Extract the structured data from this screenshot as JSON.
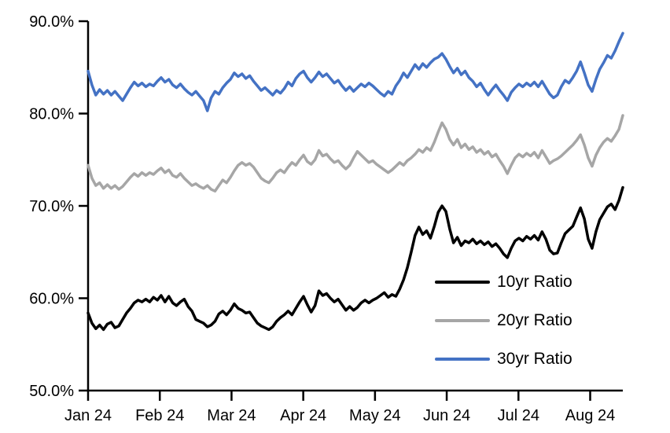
{
  "chart_data": {
    "type": "line",
    "title": "",
    "xlabel": "",
    "ylabel": "",
    "grid": false,
    "legend_position": "inside-lower-right",
    "ylim": [
      50,
      90
    ],
    "y_ticks": [
      {
        "value": 50,
        "label": "50.0%"
      },
      {
        "value": 60,
        "label": "60.0%"
      },
      {
        "value": 70,
        "label": "70.0%"
      },
      {
        "value": 80,
        "label": "80.0%"
      },
      {
        "value": 90,
        "label": "90.0%"
      }
    ],
    "x_range_months": [
      0,
      7.455
    ],
    "x_ticks": [
      {
        "pos": 0,
        "label": "Jan 24"
      },
      {
        "pos": 1,
        "label": "Feb 24"
      },
      {
        "pos": 2,
        "label": "Mar 24"
      },
      {
        "pos": 3,
        "label": "Apr 24"
      },
      {
        "pos": 4,
        "label": "May 24"
      },
      {
        "pos": 5,
        "label": "Jun 24"
      },
      {
        "pos": 6,
        "label": "Jul 24"
      },
      {
        "pos": 7,
        "label": "Aug 24"
      }
    ],
    "axis_color": "#000000",
    "series": [
      {
        "name": "10yr Ratio",
        "color": "#000000",
        "values": [
          58.4,
          57.3,
          56.7,
          57.1,
          56.6,
          57.2,
          57.4,
          56.8,
          57.0,
          57.7,
          58.4,
          58.9,
          59.5,
          59.8,
          59.6,
          59.9,
          59.6,
          60.1,
          59.8,
          60.3,
          59.6,
          60.2,
          59.5,
          59.2,
          59.6,
          59.9,
          59.1,
          58.6,
          57.7,
          57.5,
          57.3,
          56.9,
          57.1,
          57.5,
          58.3,
          58.6,
          58.2,
          58.7,
          59.4,
          58.9,
          58.7,
          58.4,
          58.5,
          57.9,
          57.3,
          57.0,
          56.8,
          56.6,
          56.9,
          57.5,
          57.9,
          58.2,
          58.6,
          58.2,
          58.9,
          59.6,
          60.2,
          59.3,
          58.5,
          59.2,
          60.8,
          60.3,
          60.5,
          60.0,
          59.6,
          59.9,
          59.3,
          58.7,
          59.1,
          58.7,
          59.0,
          59.5,
          59.8,
          59.5,
          59.8,
          60.0,
          60.3,
          60.6,
          60.1,
          60.4,
          60.2,
          61.0,
          62.0,
          63.3,
          65.0,
          66.8,
          67.7,
          66.9,
          67.3,
          66.5,
          67.8,
          69.3,
          70.0,
          69.4,
          67.5,
          66.0,
          66.6,
          65.7,
          66.2,
          66.0,
          66.4,
          65.9,
          66.2,
          65.8,
          66.1,
          65.6,
          65.9,
          65.4,
          64.8,
          64.4,
          65.4,
          66.2,
          66.5,
          66.2,
          66.7,
          66.4,
          66.8,
          66.3,
          67.2,
          66.4,
          65.2,
          64.8,
          64.9,
          66.0,
          67.0,
          67.4,
          67.8,
          68.8,
          69.8,
          68.6,
          66.4,
          65.4,
          67.2,
          68.5,
          69.2,
          69.9,
          70.2,
          69.6,
          70.6,
          72.0
        ]
      },
      {
        "name": "20yr Ratio",
        "color": "#A6A6A6",
        "values": [
          74.4,
          73.0,
          72.2,
          72.5,
          71.9,
          72.3,
          71.9,
          72.2,
          71.8,
          72.1,
          72.6,
          73.1,
          73.5,
          73.2,
          73.6,
          73.3,
          73.6,
          73.4,
          73.8,
          74.1,
          73.6,
          73.9,
          73.3,
          73.1,
          73.5,
          73.0,
          72.6,
          72.2,
          72.4,
          72.1,
          71.9,
          72.2,
          71.8,
          71.6,
          72.2,
          72.8,
          72.5,
          73.1,
          73.8,
          74.4,
          74.7,
          74.4,
          74.6,
          74.2,
          73.6,
          73.0,
          72.7,
          72.5,
          73.0,
          73.6,
          73.9,
          73.6,
          74.2,
          74.7,
          74.4,
          75.0,
          75.5,
          74.8,
          74.5,
          75.0,
          76.0,
          75.4,
          75.6,
          75.1,
          74.7,
          74.9,
          74.4,
          74.0,
          74.4,
          75.2,
          75.9,
          75.5,
          75.1,
          74.7,
          74.9,
          74.5,
          74.2,
          73.9,
          73.6,
          73.9,
          74.3,
          74.7,
          74.4,
          74.9,
          75.2,
          75.6,
          76.1,
          75.8,
          76.3,
          76.0,
          76.9,
          78.0,
          79.0,
          78.3,
          77.2,
          76.6,
          77.2,
          76.3,
          76.7,
          76.1,
          76.4,
          75.8,
          76.1,
          75.6,
          75.9,
          75.3,
          75.6,
          74.9,
          74.3,
          73.5,
          74.4,
          75.2,
          75.6,
          75.3,
          75.7,
          75.4,
          75.8,
          75.2,
          76.0,
          75.3,
          74.6,
          74.9,
          75.1,
          75.4,
          75.8,
          76.2,
          76.6,
          77.1,
          77.7,
          76.6,
          75.2,
          74.3,
          75.5,
          76.3,
          76.9,
          77.3,
          77.0,
          77.6,
          78.3,
          79.8
        ]
      },
      {
        "name": "30yr Ratio",
        "color": "#4472C4",
        "values": [
          84.6,
          83.1,
          82.0,
          82.6,
          82.1,
          82.5,
          82.0,
          82.4,
          81.9,
          81.4,
          82.1,
          82.8,
          83.4,
          83.0,
          83.3,
          82.9,
          83.2,
          83.0,
          83.5,
          83.9,
          83.4,
          83.7,
          83.1,
          82.8,
          83.2,
          82.7,
          82.3,
          82.0,
          82.4,
          81.9,
          81.4,
          80.3,
          81.7,
          82.4,
          82.1,
          82.8,
          83.3,
          83.7,
          84.4,
          84.0,
          84.3,
          83.8,
          84.1,
          83.5,
          83.0,
          82.5,
          82.8,
          82.4,
          82.0,
          82.5,
          82.2,
          82.7,
          83.4,
          83.0,
          83.8,
          84.3,
          84.6,
          83.9,
          83.4,
          83.9,
          84.5,
          84.0,
          84.3,
          83.8,
          83.3,
          83.6,
          83.0,
          82.5,
          82.9,
          82.4,
          82.8,
          83.2,
          82.9,
          83.3,
          83.0,
          82.6,
          82.2,
          81.9,
          82.4,
          82.1,
          83.0,
          83.6,
          84.4,
          83.9,
          84.6,
          85.3,
          84.8,
          85.4,
          85.0,
          85.5,
          85.9,
          86.1,
          86.5,
          85.9,
          85.1,
          84.4,
          84.9,
          84.2,
          84.6,
          83.9,
          83.5,
          82.9,
          83.3,
          82.6,
          82.0,
          82.6,
          83.1,
          82.5,
          82.0,
          81.4,
          82.3,
          82.8,
          83.2,
          82.9,
          83.3,
          83.0,
          83.4,
          82.9,
          83.5,
          82.8,
          82.1,
          81.7,
          82.0,
          82.9,
          83.6,
          83.3,
          83.9,
          84.6,
          85.6,
          84.4,
          83.1,
          82.4,
          83.7,
          84.8,
          85.5,
          86.3,
          86.0,
          86.8,
          87.8,
          88.7
        ]
      }
    ]
  }
}
